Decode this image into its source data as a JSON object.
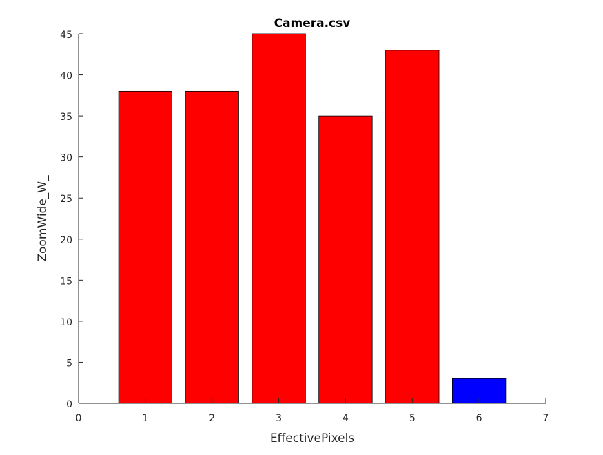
{
  "chart_data": {
    "type": "bar",
    "title": "Camera.csv",
    "xlabel": "EffectivePixels",
    "ylabel": "ZoomWide_W_",
    "x": [
      1,
      2,
      3,
      4,
      5,
      6
    ],
    "values": [
      38,
      38,
      45,
      35,
      43,
      3
    ],
    "bar_colors": [
      "#ff0000",
      "#ff0000",
      "#ff0000",
      "#ff0000",
      "#ff0000",
      "#0000ff"
    ],
    "xlim": [
      0,
      7
    ],
    "ylim": [
      0,
      45
    ],
    "xticks": [
      0,
      1,
      2,
      3,
      4,
      5,
      6,
      7
    ],
    "yticks": [
      0,
      5,
      10,
      15,
      20,
      25,
      30,
      35,
      40,
      45
    ],
    "grid": false,
    "legend": "none"
  }
}
